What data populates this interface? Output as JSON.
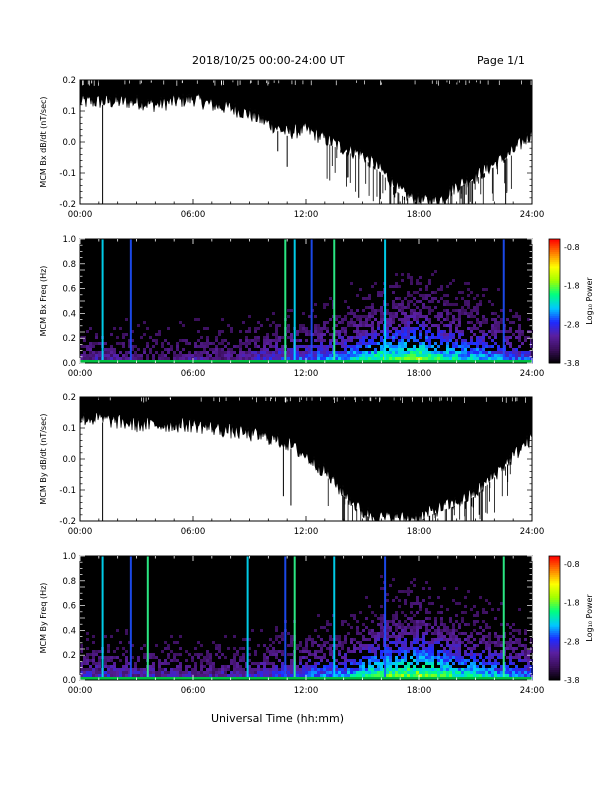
{
  "header": {
    "title": "2018/10/25   00:00-24:00 UT",
    "page": "Page 1/1"
  },
  "footer": {
    "xlabel": "Universal Time (hh:mm)"
  },
  "colorbar": {
    "title": "Log₁₀ Power",
    "ticks": [
      "-0.8",
      "-1.8",
      "-2.8",
      "-3.8"
    ],
    "tick_values": [
      -0.8,
      -1.8,
      -2.8,
      -3.8
    ],
    "range": [
      -3.8,
      -0.6
    ],
    "colors": [
      "#000000",
      "#3a0f5a",
      "#5a1fa0",
      "#1e2aff",
      "#00c8ff",
      "#00ff80",
      "#a0ff00",
      "#ffff00",
      "#ff8000",
      "#ff0000"
    ]
  },
  "chart_data": [
    {
      "type": "line",
      "panel": "Bx dB/dt",
      "ylabel": "MCM Bx dB/dt (nT/sec)",
      "xlim": [
        "00:00",
        "24:00"
      ],
      "ylim": [
        -0.2,
        0.2
      ],
      "xticks": [
        "00:00",
        "06:00",
        "12:00",
        "18:00",
        "24:00"
      ],
      "yticks": [
        "-0.2",
        "-0.1",
        "0.0",
        "0.1",
        "0.2"
      ],
      "ytick_values": [
        -0.2,
        -0.1,
        0.0,
        0.1,
        0.2
      ],
      "envelope_hours": [
        0,
        1,
        2,
        3,
        4,
        5,
        6,
        7,
        8,
        9,
        10,
        11,
        12,
        13,
        14,
        15,
        16,
        17,
        18,
        19,
        20,
        21,
        22,
        23,
        24
      ],
      "envelope_lower": [
        0.12,
        0.12,
        0.12,
        0.12,
        0.11,
        0.12,
        0.13,
        0.11,
        0.1,
        0.08,
        0.05,
        0.02,
        0.03,
        0.0,
        -0.03,
        -0.05,
        -0.1,
        -0.17,
        -0.2,
        -0.2,
        -0.15,
        -0.12,
        -0.08,
        -0.04,
        0.02
      ],
      "spikes": [
        [
          1.2,
          -0.2
        ],
        [
          10.5,
          -0.03
        ],
        [
          11.0,
          -0.08
        ],
        [
          14.8,
          -0.18
        ],
        [
          16.5,
          -0.2
        ],
        [
          17.4,
          -0.2
        ],
        [
          18.2,
          -0.2
        ],
        [
          18.8,
          -0.2
        ],
        [
          20.5,
          -0.17
        ],
        [
          22.6,
          -0.2
        ]
      ]
    },
    {
      "type": "heatmap",
      "panel": "Bx spectrogram",
      "ylabel": "MCM Bx Freq (Hz)",
      "xlim": [
        "00:00",
        "24:00"
      ],
      "ylim": [
        0.0,
        1.0
      ],
      "xticks": [
        "00:00",
        "06:00",
        "12:00",
        "18:00",
        "24:00"
      ],
      "yticks": [
        "0.0",
        "0.2",
        "0.4",
        "0.6",
        "0.8",
        "1.0"
      ],
      "ytick_values": [
        0.0,
        0.2,
        0.4,
        0.6,
        0.8,
        1.0
      ],
      "bright_lines_hours": [
        1.2,
        2.7,
        10.9,
        11.4,
        12.3,
        13.5,
        16.2,
        22.5
      ],
      "activity_hours": [
        0,
        2,
        4,
        6,
        8,
        10,
        12,
        14,
        16,
        18,
        20,
        22,
        24
      ],
      "activity_level": [
        0.35,
        0.3,
        0.25,
        0.3,
        0.3,
        0.45,
        0.55,
        0.65,
        0.85,
        0.9,
        0.75,
        0.65,
        0.5
      ]
    },
    {
      "type": "line",
      "panel": "By dB/dt",
      "ylabel": "MCM By dB/dt (nT/sec)",
      "xlim": [
        "00:00",
        "24:00"
      ],
      "ylim": [
        -0.2,
        0.2
      ],
      "xticks": [
        "00:00",
        "06:00",
        "12:00",
        "18:00",
        "24:00"
      ],
      "yticks": [
        "-0.2",
        "-0.1",
        "0.0",
        "0.1",
        "0.2"
      ],
      "ytick_values": [
        -0.2,
        -0.1,
        0.0,
        0.1,
        0.2
      ],
      "envelope_hours": [
        0,
        1,
        2,
        3,
        4,
        5,
        6,
        7,
        8,
        9,
        10,
        11,
        12,
        13,
        14,
        15,
        16,
        17,
        18,
        19,
        20,
        21,
        22,
        23,
        24
      ],
      "envelope_lower": [
        0.12,
        0.12,
        0.11,
        0.1,
        0.1,
        0.1,
        0.1,
        0.09,
        0.08,
        0.07,
        0.06,
        0.04,
        0.0,
        -0.05,
        -0.12,
        -0.18,
        -0.2,
        -0.2,
        -0.2,
        -0.17,
        -0.15,
        -0.12,
        -0.06,
        0.0,
        0.06
      ],
      "spikes": [
        [
          1.2,
          -0.2
        ],
        [
          10.8,
          -0.12
        ],
        [
          11.2,
          -0.15
        ],
        [
          14.0,
          -0.2
        ],
        [
          15.2,
          -0.2
        ],
        [
          15.7,
          -0.2
        ],
        [
          16.6,
          -0.2
        ],
        [
          17.3,
          -0.2
        ],
        [
          19.6,
          -0.16
        ],
        [
          21.2,
          -0.18
        ]
      ]
    },
    {
      "type": "heatmap",
      "panel": "By spectrogram",
      "ylabel": "MCM By Freq (Hz)",
      "xlim": [
        "00:00",
        "24:00"
      ],
      "ylim": [
        0.0,
        1.0
      ],
      "xticks": [
        "00:00",
        "06:00",
        "12:00",
        "18:00",
        "24:00"
      ],
      "yticks": [
        "0.0",
        "0.2",
        "0.4",
        "0.6",
        "0.8",
        "1.0"
      ],
      "ytick_values": [
        0.0,
        0.2,
        0.4,
        0.6,
        0.8,
        1.0
      ],
      "bright_lines_hours": [
        1.2,
        2.7,
        3.6,
        8.9,
        10.9,
        11.4,
        13.5,
        16.2,
        22.5
      ],
      "activity_hours": [
        0,
        2,
        4,
        6,
        8,
        10,
        12,
        14,
        16,
        18,
        20,
        22,
        24
      ],
      "activity_level": [
        0.4,
        0.4,
        0.35,
        0.35,
        0.35,
        0.45,
        0.55,
        0.65,
        0.9,
        0.95,
        0.8,
        0.7,
        0.55
      ]
    }
  ]
}
